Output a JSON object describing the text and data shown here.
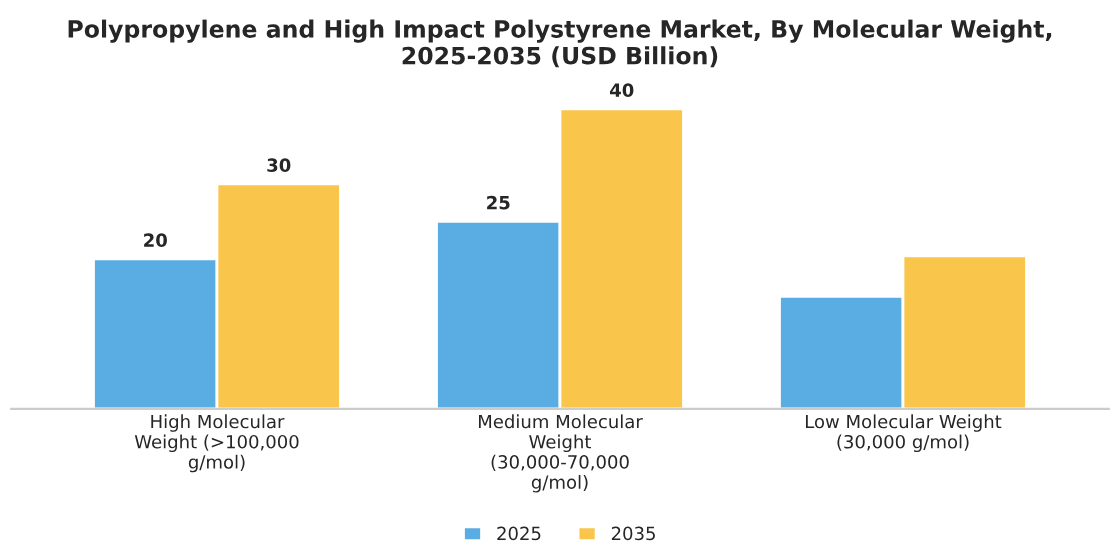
{
  "chart_data": {
    "type": "bar",
    "title": "Polypropylene and High Impact Polystyrene Market, By Molecular Weight, 2025-2035 (USD Billion)",
    "categories": [
      "High Molecular\nWeight (>100,000\ng/mol)",
      "Medium Molecular\nWeight\n(30,000-70,000\ng/mol)",
      "Low Molecular Weight\n(30,000 g/mol)"
    ],
    "series": [
      {
        "name": "2025",
        "color": "#5aade3",
        "values": [
          20,
          25,
          15
        ],
        "value_labels": [
          "20",
          "25",
          null
        ]
      },
      {
        "name": "2035",
        "color": "#f9c54b",
        "values": [
          30,
          40,
          20.4
        ],
        "value_labels": [
          "30",
          "40",
          null
        ]
      }
    ],
    "legend": "bottom",
    "grid": false
  }
}
